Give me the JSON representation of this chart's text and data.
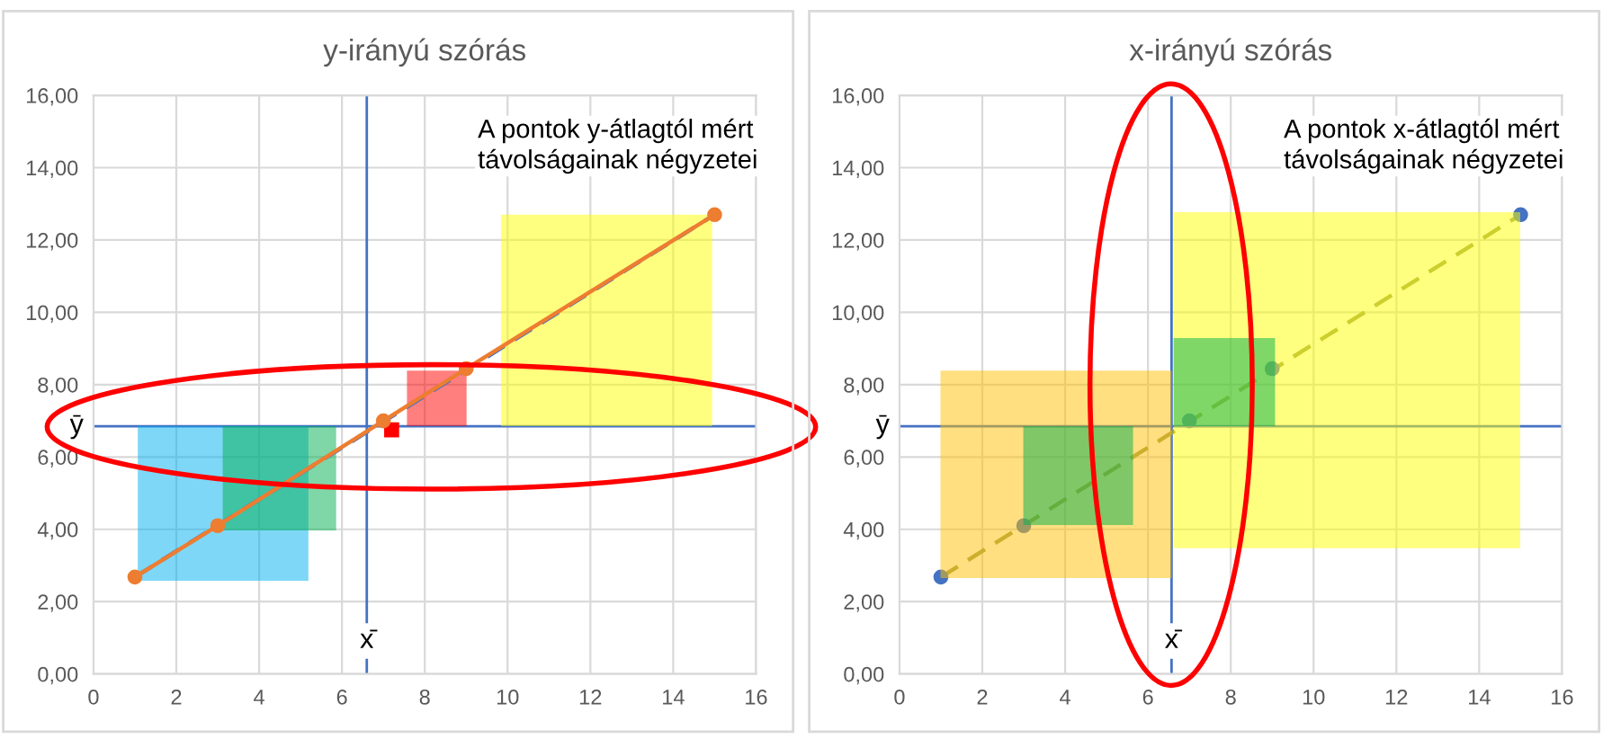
{
  "chart_data": [
    {
      "type": "line",
      "title": "y-irányú szórás",
      "xlim": [
        0,
        16
      ],
      "ylim": [
        0,
        16
      ],
      "xticks": [
        0,
        2,
        4,
        6,
        8,
        10,
        12,
        14,
        16
      ],
      "yticks": [
        {
          "value": 0,
          "label": "0,00"
        },
        {
          "value": 2,
          "label": "2,00"
        },
        {
          "value": 4,
          "label": "4,00"
        },
        {
          "value": 6,
          "label": "6,00"
        },
        {
          "value": 8,
          "label": "8,00"
        },
        {
          "value": 10,
          "label": "10,00"
        },
        {
          "value": 12,
          "label": "12,00"
        },
        {
          "value": 14,
          "label": "14,00"
        },
        {
          "value": 16,
          "label": "16,00"
        }
      ],
      "grid": true,
      "ref_lines": [
        {
          "axis": "y",
          "value": 6.85,
          "label": "ȳ",
          "color": "#4472c4"
        },
        {
          "axis": "x",
          "value": 6.6,
          "label": "x̄",
          "color": "#4472c4"
        }
      ],
      "annotations": [
        "A pontok y-átlagtól mért\ntávolságainak négyzetei"
      ],
      "series": [
        {
          "type": "area",
          "color": "#00b0f0",
          "x": [
            1.07,
            5.19,
            5.19,
            1.07
          ],
          "values": [
            2.58,
            2.58,
            6.85,
            6.85
          ]
        },
        {
          "type": "area",
          "color": "#00b050",
          "x": [
            3.12,
            5.86,
            5.86,
            3.12
          ],
          "values": [
            3.97,
            3.97,
            6.85,
            6.85
          ]
        },
        {
          "type": "scatter",
          "color": "#ff0000",
          "x": [
            7.2
          ],
          "values": [
            6.75
          ],
          "marker": "square"
        },
        {
          "type": "area",
          "color": "#ff0000",
          "x": [
            7.57,
            9.01,
            9.01,
            7.57
          ],
          "values": [
            6.85,
            6.85,
            8.39,
            8.39
          ]
        },
        {
          "type": "area",
          "color": "#ffff00",
          "x": [
            9.84,
            14.94,
            14.94,
            9.84
          ],
          "values": [
            6.85,
            6.85,
            12.7,
            12.7
          ]
        },
        {
          "color": "#4472c4",
          "x": [
            1,
            15
          ],
          "values": [
            2.68,
            12.7
          ],
          "line_style": "dashed",
          "marker": "none"
        },
        {
          "color": "#ed7d31",
          "x": [
            1,
            3,
            7,
            9,
            15
          ],
          "values": [
            2.68,
            4.1,
            7.0,
            8.44,
            12.7
          ],
          "line_style": "solid",
          "marker": "circle"
        }
      ]
    },
    {
      "type": "scatter",
      "title": "x-irányú szórás",
      "xlim": [
        0,
        16
      ],
      "ylim": [
        0,
        16
      ],
      "xticks": [
        0,
        2,
        4,
        6,
        8,
        10,
        12,
        14,
        16
      ],
      "yticks": [
        {
          "value": 0,
          "label": "0,00"
        },
        {
          "value": 2,
          "label": "2,00"
        },
        {
          "value": 4,
          "label": "4,00"
        },
        {
          "value": 6,
          "label": "6,00"
        },
        {
          "value": 8,
          "label": "8,00"
        },
        {
          "value": 10,
          "label": "10,00"
        },
        {
          "value": 12,
          "label": "12,00"
        },
        {
          "value": 14,
          "label": "14,00"
        },
        {
          "value": 16,
          "label": "16,00"
        }
      ],
      "grid": true,
      "ref_lines": [
        {
          "axis": "y",
          "value": 6.85,
          "label": "ȳ",
          "color": "#4472c4"
        },
        {
          "axis": "x",
          "value": 6.57,
          "label": "x̄",
          "color": "#4472c4"
        }
      ],
      "annotations": [
        "A pontok x-átlagtól mért\ntávolságainak négyzetei"
      ],
      "series": [
        {
          "type": "line",
          "color": "#9a9e5a",
          "x": [
            1,
            15
          ],
          "values": [
            2.68,
            12.7
          ],
          "line_style": "dashed",
          "marker": "none"
        },
        {
          "color": "#4472c4",
          "x": [
            1,
            3,
            7,
            9,
            15
          ],
          "values": [
            2.68,
            4.1,
            7.0,
            8.44,
            12.7
          ],
          "marker": "circle"
        },
        {
          "type": "area",
          "color": "#ffc000",
          "x": [
            0.99,
            6.57,
            6.57,
            0.99
          ],
          "values": [
            2.65,
            2.65,
            8.39,
            8.39
          ]
        },
        {
          "type": "area",
          "color": "#00b050",
          "x": [
            2.99,
            5.64,
            5.64,
            2.99
          ],
          "values": [
            4.12,
            4.12,
            6.85,
            6.85
          ]
        },
        {
          "type": "area",
          "color": "#ffff00",
          "x": [
            6.62,
            14.99,
            14.99,
            6.62
          ],
          "values": [
            3.48,
            3.48,
            12.77,
            12.77
          ]
        },
        {
          "type": "area",
          "color": "#00b050",
          "x": [
            6.62,
            9.07,
            9.07,
            6.62
          ],
          "values": [
            6.85,
            6.85,
            9.29,
            9.29
          ]
        }
      ]
    }
  ]
}
